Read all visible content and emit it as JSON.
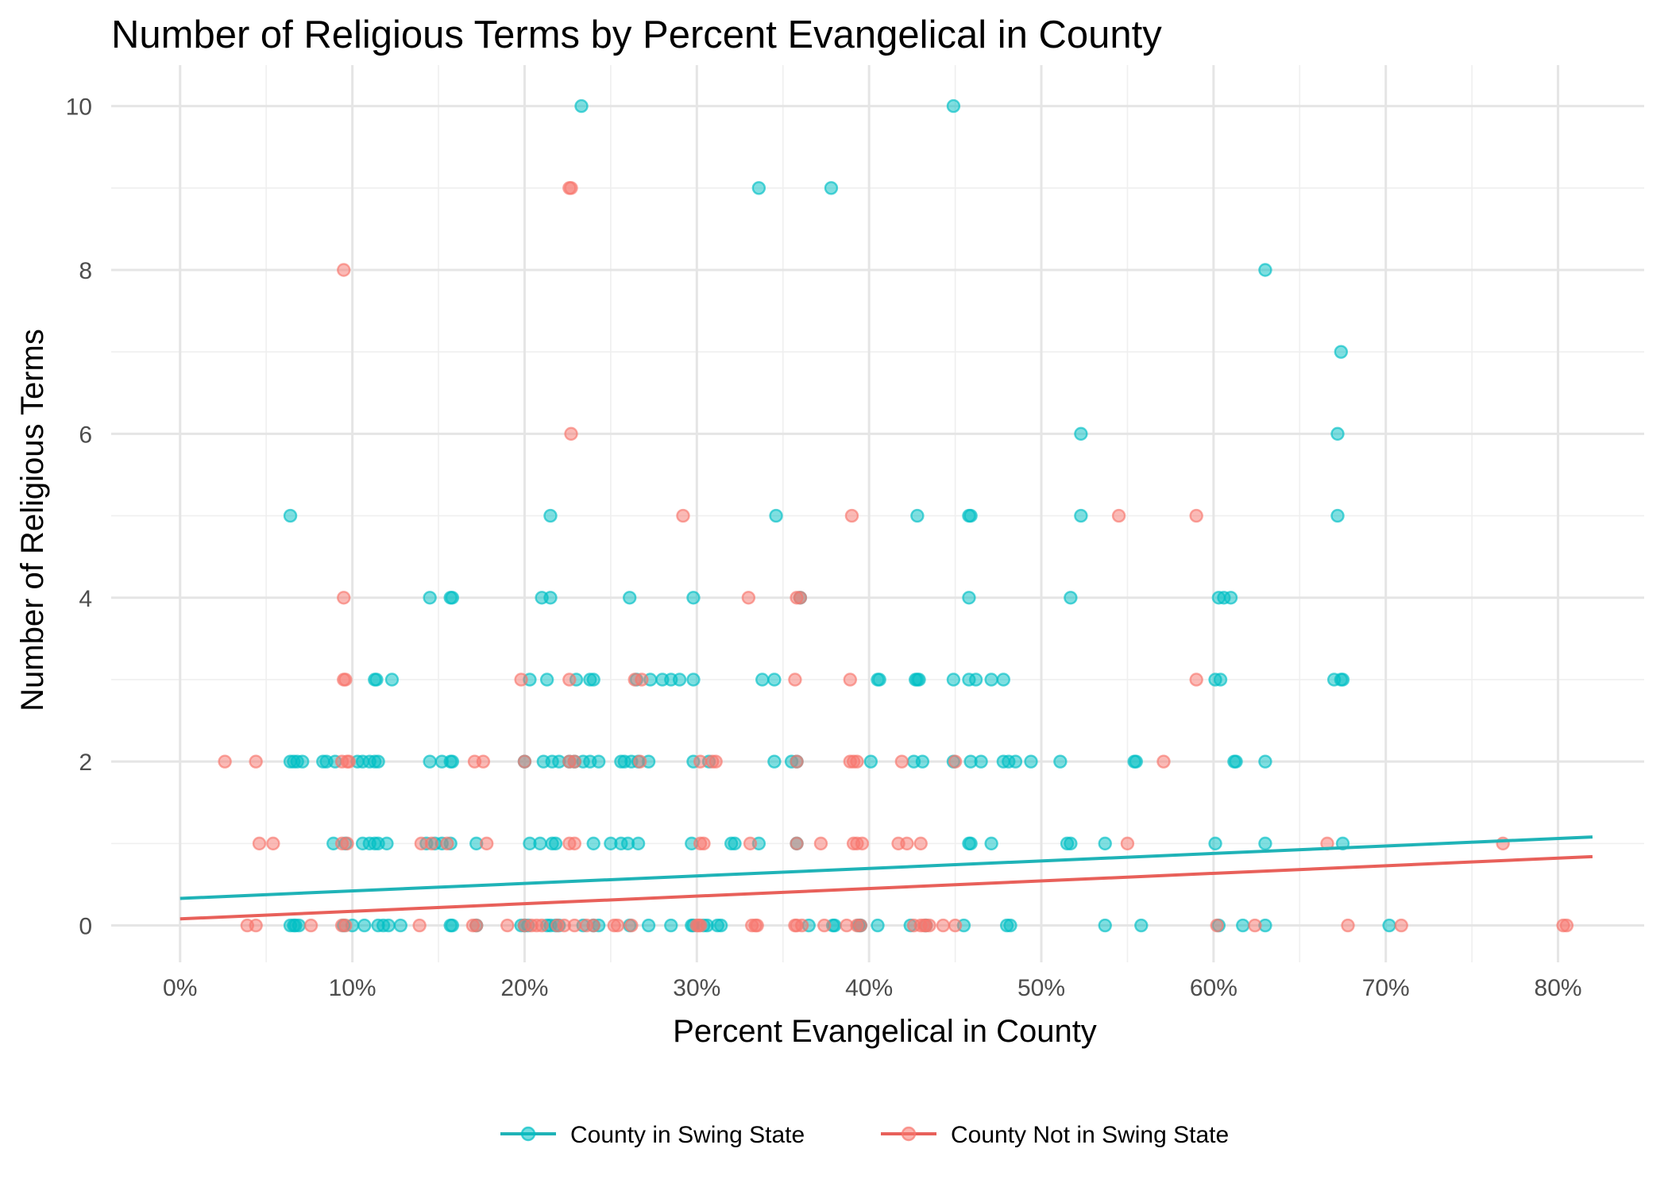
{
  "chart_data": {
    "type": "scatter",
    "title": "Number of Religious Terms by Percent Evangelical in County",
    "xlabel": "Percent Evangelical in County",
    "ylabel": "Number of Religious Terms",
    "xlim": [
      -0.04,
      0.85
    ],
    "ylim": [
      -0.45,
      10.5
    ],
    "x_ticks": [
      0,
      0.1,
      0.2,
      0.3,
      0.4,
      0.5,
      0.6,
      0.7,
      0.8
    ],
    "x_tick_labels": [
      "0%",
      "10%",
      "20%",
      "30%",
      "40%",
      "50%",
      "60%",
      "70%",
      "80%"
    ],
    "y_ticks": [
      0,
      2,
      4,
      6,
      8,
      10
    ],
    "y_tick_labels": [
      "0",
      "2",
      "4",
      "6",
      "8",
      "10"
    ],
    "grid": true,
    "legend_position": "bottom",
    "series": [
      {
        "name": "County in Swing State",
        "color": "#00BFC4",
        "line_color": "#1FB3B7",
        "trend": {
          "x": [
            0,
            0.82
          ],
          "y": [
            0.33,
            1.08
          ]
        },
        "points": [
          [
            0.233,
            10
          ],
          [
            0.449,
            10
          ],
          [
            0.336,
            9
          ],
          [
            0.378,
            9
          ],
          [
            0.63,
            8
          ],
          [
            0.674,
            7
          ],
          [
            0.523,
            6
          ],
          [
            0.672,
            6
          ],
          [
            0.064,
            5
          ],
          [
            0.215,
            5
          ],
          [
            0.346,
            5
          ],
          [
            0.428,
            5
          ],
          [
            0.458,
            5
          ],
          [
            0.459,
            5
          ],
          [
            0.523,
            5
          ],
          [
            0.672,
            5
          ],
          [
            0.145,
            4
          ],
          [
            0.157,
            4
          ],
          [
            0.158,
            4
          ],
          [
            0.21,
            4
          ],
          [
            0.215,
            4
          ],
          [
            0.261,
            4
          ],
          [
            0.298,
            4
          ],
          [
            0.36,
            4
          ],
          [
            0.458,
            4
          ],
          [
            0.517,
            4
          ],
          [
            0.603,
            4
          ],
          [
            0.606,
            4
          ],
          [
            0.61,
            4
          ],
          [
            0.113,
            3
          ],
          [
            0.114,
            3
          ],
          [
            0.123,
            3
          ],
          [
            0.203,
            3
          ],
          [
            0.213,
            3
          ],
          [
            0.23,
            3
          ],
          [
            0.238,
            3
          ],
          [
            0.24,
            3
          ],
          [
            0.265,
            3
          ],
          [
            0.273,
            3
          ],
          [
            0.28,
            3
          ],
          [
            0.285,
            3
          ],
          [
            0.29,
            3
          ],
          [
            0.298,
            3
          ],
          [
            0.338,
            3
          ],
          [
            0.345,
            3
          ],
          [
            0.405,
            3
          ],
          [
            0.406,
            3
          ],
          [
            0.427,
            3
          ],
          [
            0.428,
            3
          ],
          [
            0.429,
            3
          ],
          [
            0.449,
            3
          ],
          [
            0.458,
            3
          ],
          [
            0.462,
            3
          ],
          [
            0.471,
            3
          ],
          [
            0.478,
            3
          ],
          [
            0.601,
            3
          ],
          [
            0.604,
            3
          ],
          [
            0.67,
            3
          ],
          [
            0.674,
            3
          ],
          [
            0.675,
            3
          ],
          [
            0.064,
            2
          ],
          [
            0.066,
            2
          ],
          [
            0.068,
            2
          ],
          [
            0.071,
            2
          ],
          [
            0.083,
            2
          ],
          [
            0.085,
            2
          ],
          [
            0.09,
            2
          ],
          [
            0.103,
            2
          ],
          [
            0.106,
            2
          ],
          [
            0.11,
            2
          ],
          [
            0.113,
            2
          ],
          [
            0.115,
            2
          ],
          [
            0.145,
            2
          ],
          [
            0.152,
            2
          ],
          [
            0.157,
            2
          ],
          [
            0.158,
            2
          ],
          [
            0.2,
            2
          ],
          [
            0.211,
            2
          ],
          [
            0.216,
            2
          ],
          [
            0.22,
            2
          ],
          [
            0.226,
            2
          ],
          [
            0.229,
            2
          ],
          [
            0.234,
            2
          ],
          [
            0.238,
            2
          ],
          [
            0.243,
            2
          ],
          [
            0.256,
            2
          ],
          [
            0.258,
            2
          ],
          [
            0.262,
            2
          ],
          [
            0.266,
            2
          ],
          [
            0.272,
            2
          ],
          [
            0.298,
            2
          ],
          [
            0.307,
            2
          ],
          [
            0.345,
            2
          ],
          [
            0.355,
            2
          ],
          [
            0.358,
            2
          ],
          [
            0.401,
            2
          ],
          [
            0.426,
            2
          ],
          [
            0.431,
            2
          ],
          [
            0.449,
            2
          ],
          [
            0.459,
            2
          ],
          [
            0.465,
            2
          ],
          [
            0.478,
            2
          ],
          [
            0.481,
            2
          ],
          [
            0.485,
            2
          ],
          [
            0.494,
            2
          ],
          [
            0.511,
            2
          ],
          [
            0.554,
            2
          ],
          [
            0.555,
            2
          ],
          [
            0.612,
            2
          ],
          [
            0.613,
            2
          ],
          [
            0.63,
            2
          ],
          [
            0.089,
            1
          ],
          [
            0.096,
            1
          ],
          [
            0.106,
            1
          ],
          [
            0.11,
            1
          ],
          [
            0.113,
            1
          ],
          [
            0.115,
            1
          ],
          [
            0.12,
            1
          ],
          [
            0.143,
            1
          ],
          [
            0.148,
            1
          ],
          [
            0.152,
            1
          ],
          [
            0.157,
            1
          ],
          [
            0.172,
            1
          ],
          [
            0.203,
            1
          ],
          [
            0.209,
            1
          ],
          [
            0.216,
            1
          ],
          [
            0.218,
            1
          ],
          [
            0.24,
            1
          ],
          [
            0.25,
            1
          ],
          [
            0.256,
            1
          ],
          [
            0.26,
            1
          ],
          [
            0.266,
            1
          ],
          [
            0.297,
            1
          ],
          [
            0.32,
            1
          ],
          [
            0.322,
            1
          ],
          [
            0.336,
            1
          ],
          [
            0.358,
            1
          ],
          [
            0.458,
            1
          ],
          [
            0.459,
            1
          ],
          [
            0.471,
            1
          ],
          [
            0.515,
            1
          ],
          [
            0.517,
            1
          ],
          [
            0.537,
            1
          ],
          [
            0.601,
            1
          ],
          [
            0.63,
            1
          ],
          [
            0.675,
            1
          ],
          [
            0.064,
            0
          ],
          [
            0.066,
            0
          ],
          [
            0.067,
            0
          ],
          [
            0.069,
            0
          ],
          [
            0.095,
            0
          ],
          [
            0.1,
            0
          ],
          [
            0.107,
            0
          ],
          [
            0.115,
            0
          ],
          [
            0.118,
            0
          ],
          [
            0.121,
            0
          ],
          [
            0.128,
            0
          ],
          [
            0.157,
            0
          ],
          [
            0.158,
            0
          ],
          [
            0.172,
            0
          ],
          [
            0.198,
            0
          ],
          [
            0.2,
            0
          ],
          [
            0.202,
            0
          ],
          [
            0.213,
            0
          ],
          [
            0.215,
            0
          ],
          [
            0.218,
            0
          ],
          [
            0.22,
            0
          ],
          [
            0.234,
            0
          ],
          [
            0.24,
            0
          ],
          [
            0.243,
            0
          ],
          [
            0.261,
            0
          ],
          [
            0.272,
            0
          ],
          [
            0.285,
            0
          ],
          [
            0.297,
            0
          ],
          [
            0.298,
            0
          ],
          [
            0.304,
            0
          ],
          [
            0.306,
            0
          ],
          [
            0.312,
            0
          ],
          [
            0.314,
            0
          ],
          [
            0.365,
            0
          ],
          [
            0.379,
            0
          ],
          [
            0.38,
            0
          ],
          [
            0.394,
            0
          ],
          [
            0.395,
            0
          ],
          [
            0.405,
            0
          ],
          [
            0.424,
            0
          ],
          [
            0.433,
            0
          ],
          [
            0.455,
            0
          ],
          [
            0.48,
            0
          ],
          [
            0.482,
            0
          ],
          [
            0.537,
            0
          ],
          [
            0.558,
            0
          ],
          [
            0.603,
            0
          ],
          [
            0.617,
            0
          ],
          [
            0.63,
            0
          ],
          [
            0.702,
            0
          ]
        ]
      },
      {
        "name": "County Not in Swing State",
        "color": "#F8766D",
        "line_color": "#E8605A",
        "trend": {
          "x": [
            0,
            0.82
          ],
          "y": [
            0.08,
            0.84
          ]
        },
        "points": [
          [
            0.227,
            9
          ],
          [
            0.226,
            9
          ],
          [
            0.095,
            8
          ],
          [
            0.227,
            6
          ],
          [
            0.292,
            5
          ],
          [
            0.39,
            5
          ],
          [
            0.545,
            5
          ],
          [
            0.59,
            5
          ],
          [
            0.095,
            4
          ],
          [
            0.33,
            4
          ],
          [
            0.358,
            4
          ],
          [
            0.36,
            4
          ],
          [
            0.095,
            3
          ],
          [
            0.096,
            3
          ],
          [
            0.198,
            3
          ],
          [
            0.226,
            3
          ],
          [
            0.264,
            3
          ],
          [
            0.268,
            3
          ],
          [
            0.357,
            3
          ],
          [
            0.389,
            3
          ],
          [
            0.59,
            3
          ],
          [
            0.026,
            2
          ],
          [
            0.044,
            2
          ],
          [
            0.094,
            2
          ],
          [
            0.097,
            2
          ],
          [
            0.098,
            2
          ],
          [
            0.171,
            2
          ],
          [
            0.176,
            2
          ],
          [
            0.2,
            2
          ],
          [
            0.226,
            2
          ],
          [
            0.229,
            2
          ],
          [
            0.267,
            2
          ],
          [
            0.302,
            2
          ],
          [
            0.309,
            2
          ],
          [
            0.311,
            2
          ],
          [
            0.358,
            2
          ],
          [
            0.389,
            2
          ],
          [
            0.391,
            2
          ],
          [
            0.393,
            2
          ],
          [
            0.419,
            2
          ],
          [
            0.45,
            2
          ],
          [
            0.571,
            2
          ],
          [
            0.046,
            1
          ],
          [
            0.054,
            1
          ],
          [
            0.094,
            1
          ],
          [
            0.097,
            1
          ],
          [
            0.14,
            1
          ],
          [
            0.146,
            1
          ],
          [
            0.155,
            1
          ],
          [
            0.178,
            1
          ],
          [
            0.226,
            1
          ],
          [
            0.229,
            1
          ],
          [
            0.302,
            1
          ],
          [
            0.304,
            1
          ],
          [
            0.331,
            1
          ],
          [
            0.358,
            1
          ],
          [
            0.372,
            1
          ],
          [
            0.391,
            1
          ],
          [
            0.393,
            1
          ],
          [
            0.396,
            1
          ],
          [
            0.417,
            1
          ],
          [
            0.422,
            1
          ],
          [
            0.43,
            1
          ],
          [
            0.55,
            1
          ],
          [
            0.666,
            1
          ],
          [
            0.768,
            1
          ],
          [
            0.039,
            0
          ],
          [
            0.044,
            0
          ],
          [
            0.076,
            0
          ],
          [
            0.094,
            0
          ],
          [
            0.096,
            0
          ],
          [
            0.139,
            0
          ],
          [
            0.17,
            0
          ],
          [
            0.172,
            0
          ],
          [
            0.19,
            0
          ],
          [
            0.2,
            0
          ],
          [
            0.204,
            0
          ],
          [
            0.207,
            0
          ],
          [
            0.21,
            0
          ],
          [
            0.219,
            0
          ],
          [
            0.223,
            0
          ],
          [
            0.229,
            0
          ],
          [
            0.236,
            0
          ],
          [
            0.24,
            0
          ],
          [
            0.252,
            0
          ],
          [
            0.254,
            0
          ],
          [
            0.262,
            0
          ],
          [
            0.3,
            0
          ],
          [
            0.301,
            0
          ],
          [
            0.302,
            0
          ],
          [
            0.332,
            0
          ],
          [
            0.334,
            0
          ],
          [
            0.335,
            0
          ],
          [
            0.357,
            0
          ],
          [
            0.358,
            0
          ],
          [
            0.361,
            0
          ],
          [
            0.374,
            0
          ],
          [
            0.387,
            0
          ],
          [
            0.393,
            0
          ],
          [
            0.395,
            0
          ],
          [
            0.426,
            0
          ],
          [
            0.43,
            0
          ],
          [
            0.432,
            0
          ],
          [
            0.433,
            0
          ],
          [
            0.435,
            0
          ],
          [
            0.443,
            0
          ],
          [
            0.45,
            0
          ],
          [
            0.602,
            0
          ],
          [
            0.624,
            0
          ],
          [
            0.678,
            0
          ],
          [
            0.709,
            0
          ],
          [
            0.803,
            0
          ],
          [
            0.805,
            0
          ]
        ]
      }
    ]
  }
}
